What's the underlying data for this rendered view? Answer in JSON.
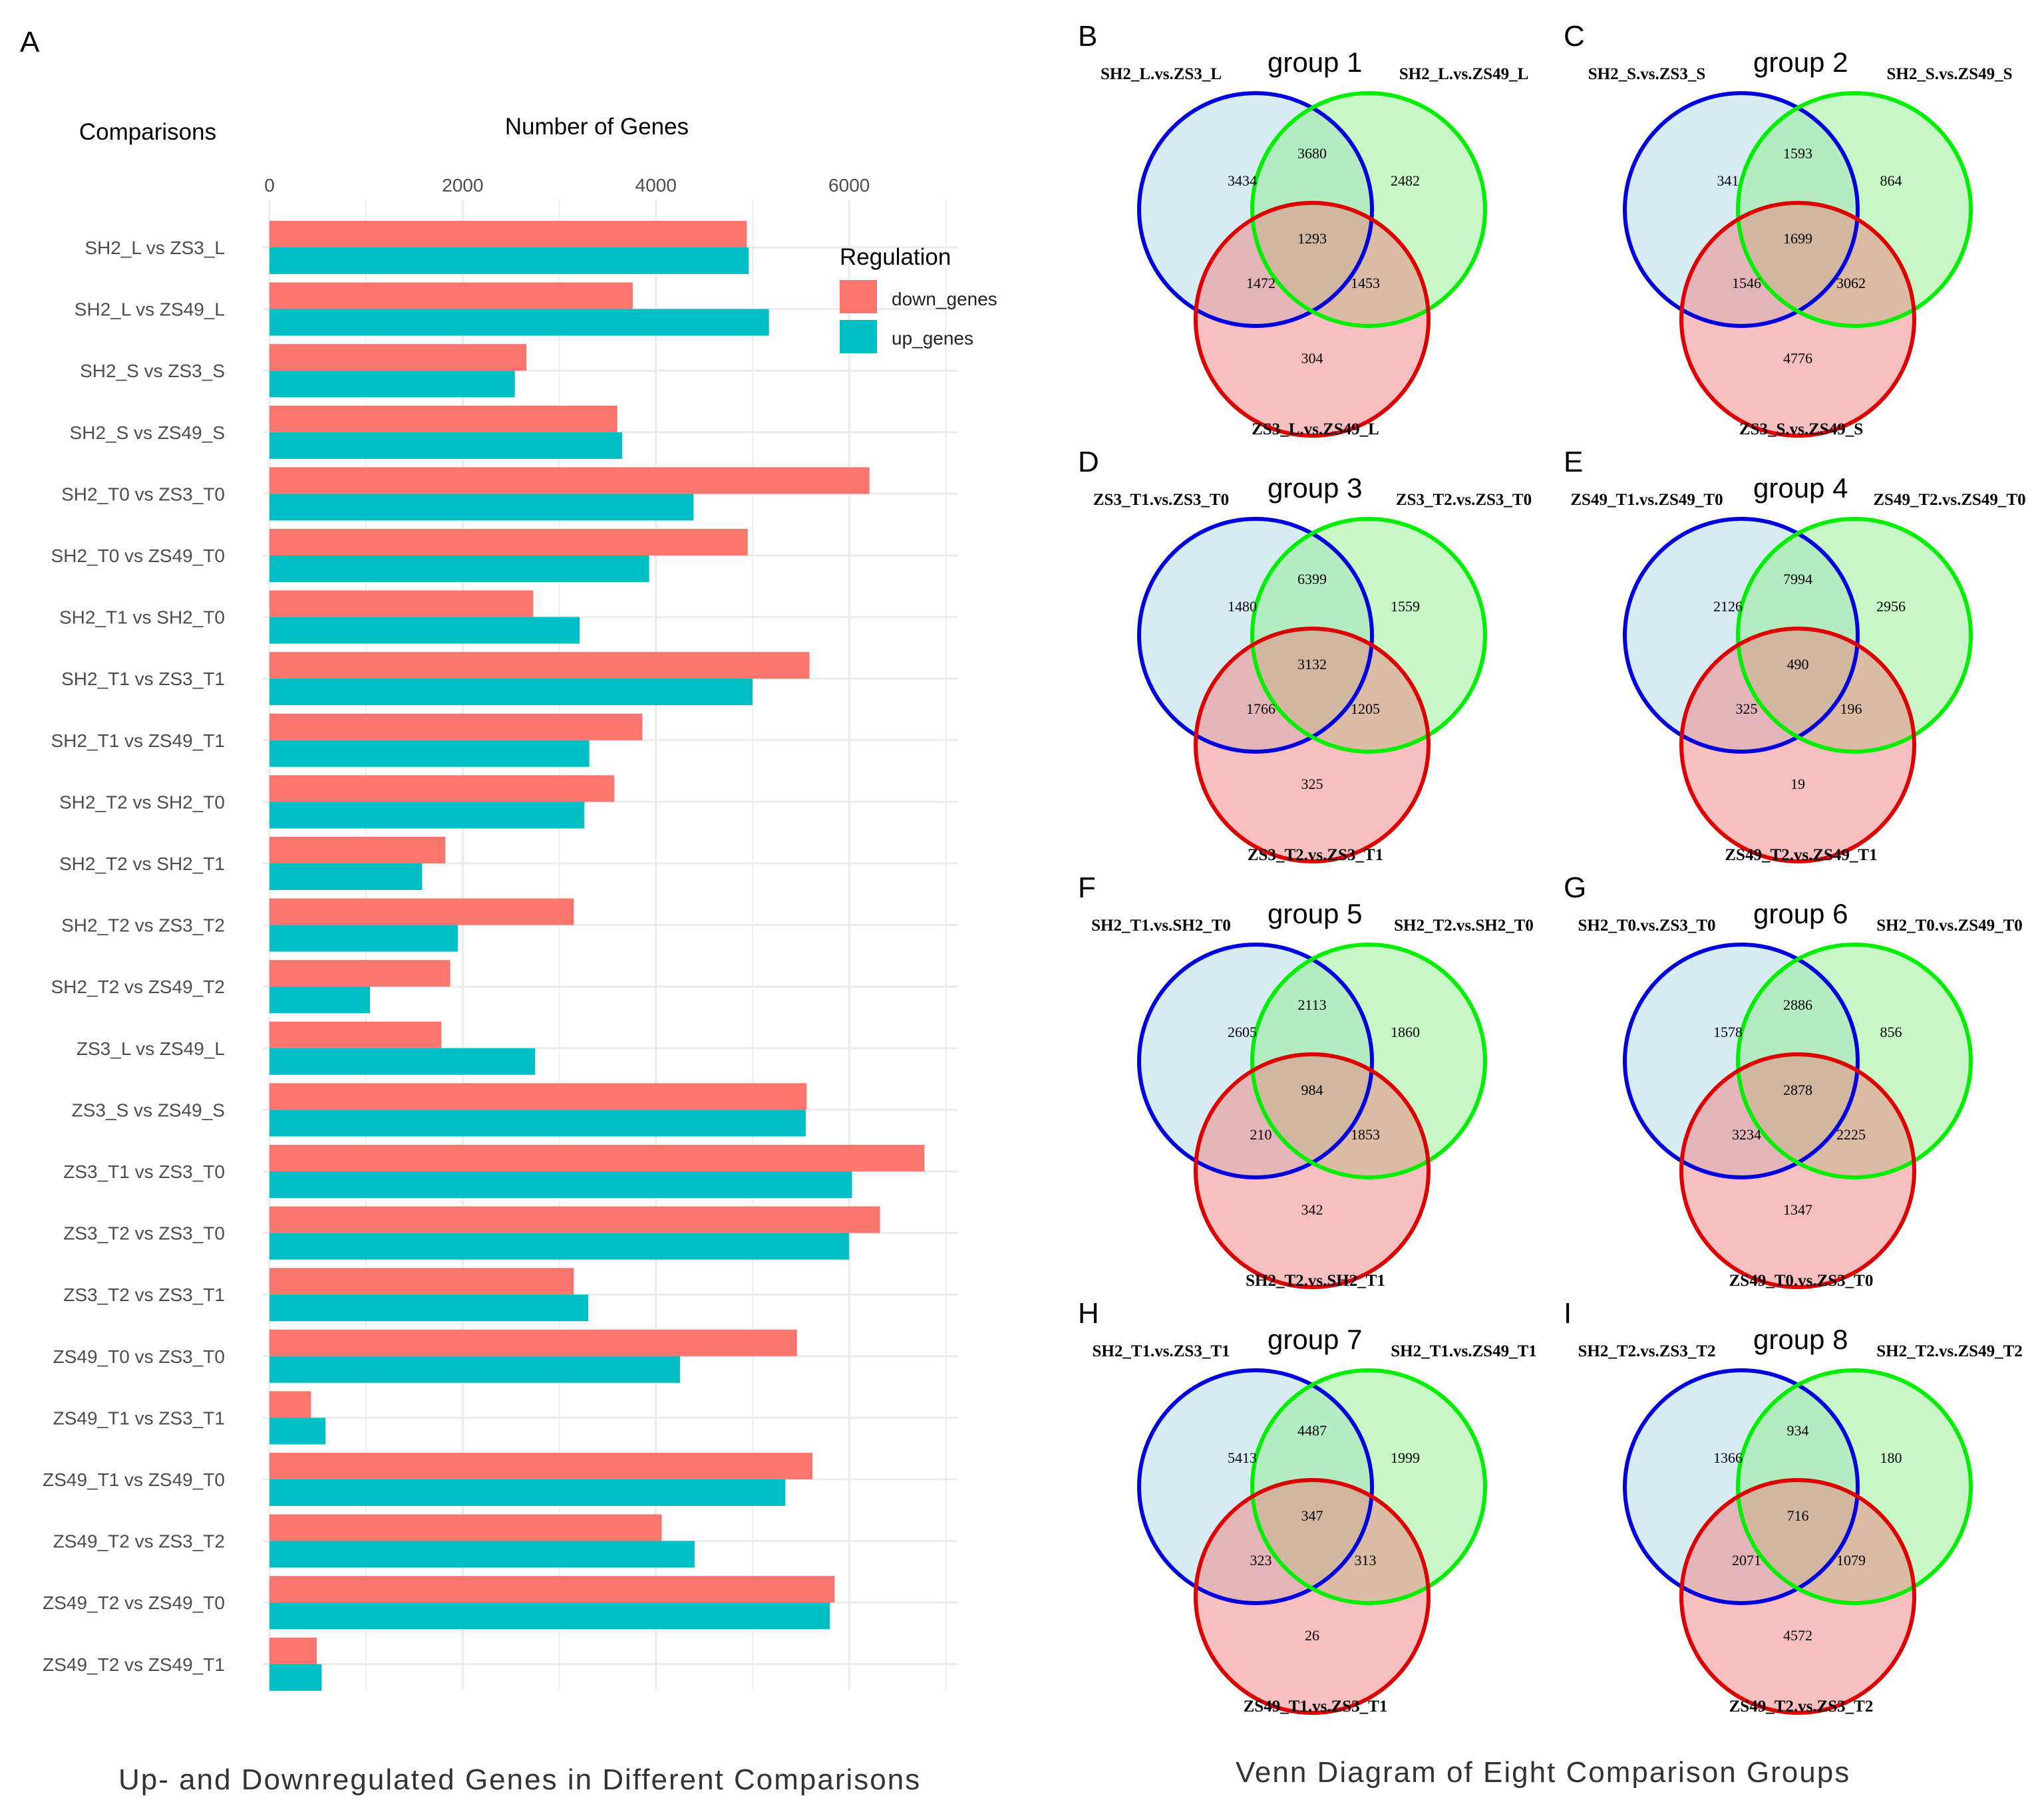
{
  "panel_a": {
    "letter": "A",
    "caption": "Up- and Downregulated Genes in Different Comparisons"
  },
  "panel_venn": {
    "caption": "Venn Diagram of Eight Comparison Groups"
  },
  "colors": {
    "down": "#F8766D",
    "up": "#00BFC4",
    "set1_stroke": "#0000DD",
    "set1_fill": "#ADD8E6",
    "set2_stroke": "#00EE00",
    "set2_fill": "#90EE90",
    "set3_stroke": "#DD0000",
    "set3_fill": "#F08080"
  },
  "chart_data": {
    "type": "bar",
    "orientation": "horizontal",
    "title": "",
    "ylabel": "Comparisons",
    "xlabel": "Number of Genes",
    "xlim": [
      0,
      7000
    ],
    "xticks": [
      0,
      2000,
      4000,
      6000
    ],
    "grid": true,
    "legend_title": "Regulation",
    "legend_position": "top-right",
    "categories": [
      "SH2_L vs ZS3_L",
      "SH2_L vs ZS49_L",
      "SH2_S vs ZS3_S",
      "SH2_S vs ZS49_S",
      "SH2_T0 vs ZS3_T0",
      "SH2_T0 vs ZS49_T0",
      "SH2_T1 vs SH2_T0",
      "SH2_T1 vs ZS3_T1",
      "SH2_T1 vs ZS49_T1",
      "SH2_T2 vs SH2_T0",
      "SH2_T2 vs SH2_T1",
      "SH2_T2 vs ZS3_T2",
      "SH2_T2 vs ZS49_T2",
      "ZS3_L vs ZS49_L",
      "ZS3_S vs ZS49_S",
      "ZS3_T1 vs ZS3_T0",
      "ZS3_T2 vs ZS3_T0",
      "ZS3_T2 vs ZS3_T1",
      "ZS49_T0 vs ZS3_T0",
      "ZS49_T1 vs ZS3_T1",
      "ZS49_T1 vs ZS49_T0",
      "ZS49_T2 vs ZS3_T2",
      "ZS49_T2 vs ZS49_T0",
      "ZS49_T2 vs ZS49_T1"
    ],
    "series": [
      {
        "name": "down_genes",
        "values": [
          4940,
          3760,
          2660,
          3600,
          6210,
          4950,
          2730,
          5590,
          3860,
          3570,
          1820,
          3150,
          1870,
          1780,
          5560,
          6780,
          6320,
          3150,
          5460,
          430,
          5620,
          4060,
          5850,
          490
        ]
      },
      {
        "name": "up_genes",
        "values": [
          4960,
          5170,
          2540,
          3650,
          4390,
          3930,
          3210,
          5000,
          3310,
          3260,
          1580,
          1950,
          1040,
          2750,
          5550,
          6030,
          6000,
          3300,
          4250,
          580,
          5340,
          4400,
          5800,
          540
        ]
      }
    ]
  },
  "venn_panels": [
    {
      "letter": "B",
      "title": "group 1",
      "sets": [
        "SH2_L.vs.ZS3_L",
        "SH2_L.vs.ZS49_L",
        "ZS3_L.vs.ZS49_L"
      ],
      "regions": {
        "only1": "3434",
        "only2": "2482",
        "only3": "304",
        "s12": "3680",
        "s13": "1472",
        "s23": "1453",
        "all": "1293"
      }
    },
    {
      "letter": "C",
      "title": "group 2",
      "sets": [
        "SH2_S.vs.ZS3_S",
        "SH2_S.vs.ZS49_S",
        "ZS3_S.vs.ZS49_S"
      ],
      "regions": {
        "only1": "341",
        "only2": "864",
        "only3": "4776",
        "s12": "1593",
        "s13": "1546",
        "s23": "3062",
        "all": "1699"
      }
    },
    {
      "letter": "D",
      "title": "group 3",
      "sets": [
        "ZS3_T1.vs.ZS3_T0",
        "ZS3_T2.vs.ZS3_T0",
        "ZS3_T2.vs.ZS3_T1"
      ],
      "regions": {
        "only1": "1480",
        "only2": "1559",
        "only3": "325",
        "s12": "6399",
        "s13": "1766",
        "s23": "1205",
        "all": "3132"
      }
    },
    {
      "letter": "E",
      "title": "group 4",
      "sets": [
        "ZS49_T1.vs.ZS49_T0",
        "ZS49_T2.vs.ZS49_T0",
        "ZS49_T2.vs.ZS49_T1"
      ],
      "regions": {
        "only1": "2126",
        "only2": "2956",
        "only3": "19",
        "s12": "7994",
        "s13": "325",
        "s23": "196",
        "all": "490"
      }
    },
    {
      "letter": "F",
      "title": "group 5",
      "sets": [
        "SH2_T1.vs.SH2_T0",
        "SH2_T2.vs.SH2_T0",
        "SH2_T2.vs.SH2_T1"
      ],
      "regions": {
        "only1": "2605",
        "only2": "1860",
        "only3": "342",
        "s12": "2113",
        "s13": "210",
        "s23": "1853",
        "all": "984"
      }
    },
    {
      "letter": "G",
      "title": "group 6",
      "sets": [
        "SH2_T0.vs.ZS3_T0",
        "SH2_T0.vs.ZS49_T0",
        "ZS49_T0.vs.ZS3_T0"
      ],
      "regions": {
        "only1": "1578",
        "only2": "856",
        "only3": "1347",
        "s12": "2886",
        "s13": "3234",
        "s23": "2225",
        "all": "2878"
      }
    },
    {
      "letter": "H",
      "title": "group 7",
      "sets": [
        "SH2_T1.vs.ZS3_T1",
        "SH2_T1.vs.ZS49_T1",
        "ZS49_T1.vs.ZS3_T1"
      ],
      "regions": {
        "only1": "5413",
        "only2": "1999",
        "only3": "26",
        "s12": "4487",
        "s13": "323",
        "s23": "313",
        "all": "347"
      }
    },
    {
      "letter": "I",
      "title": "group 8",
      "sets": [
        "SH2_T2.vs.ZS3_T2",
        "SH2_T2.vs.ZS49_T2",
        "ZS49_T2.vs.ZS3_T2"
      ],
      "regions": {
        "only1": "1366",
        "only2": "180",
        "only3": "4572",
        "s12": "934",
        "s13": "2071",
        "s23": "1079",
        "all": "716"
      }
    }
  ]
}
